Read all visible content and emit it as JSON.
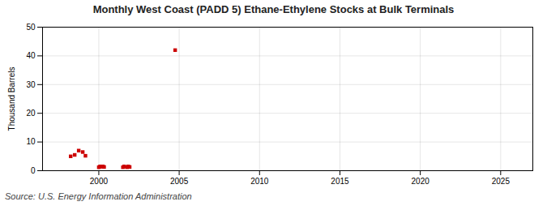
{
  "chart_data": {
    "type": "scatter",
    "title": "Monthly West Coast (PADD 5) Ethane-Ethylene Stocks at Bulk Terminals",
    "ylabel": "Thousand Barrels",
    "source": "Source: U.S. Energy Information Administration",
    "x": [
      1998.25,
      1998.5,
      1998.75,
      1999.0,
      1999.17,
      2000.0,
      2000.08,
      2000.17,
      2000.25,
      2000.33,
      2001.5,
      2001.58,
      2001.75,
      2001.83,
      2001.92,
      2004.75
    ],
    "values": [
      5.0,
      5.5,
      7.0,
      6.5,
      5.2,
      1.2,
      1.5,
      1.4,
      1.5,
      1.3,
      1.2,
      1.5,
      1.2,
      1.5,
      1.3,
      42.0
    ],
    "color": "#cc0000",
    "marker": "square",
    "xlim": [
      1996.5,
      2027
    ],
    "ylim": [
      0,
      50
    ],
    "xticks": [
      2000,
      2005,
      2010,
      2015,
      2020,
      2025
    ],
    "yticks": [
      0,
      10,
      20,
      30,
      40,
      50
    ],
    "grid": true
  }
}
